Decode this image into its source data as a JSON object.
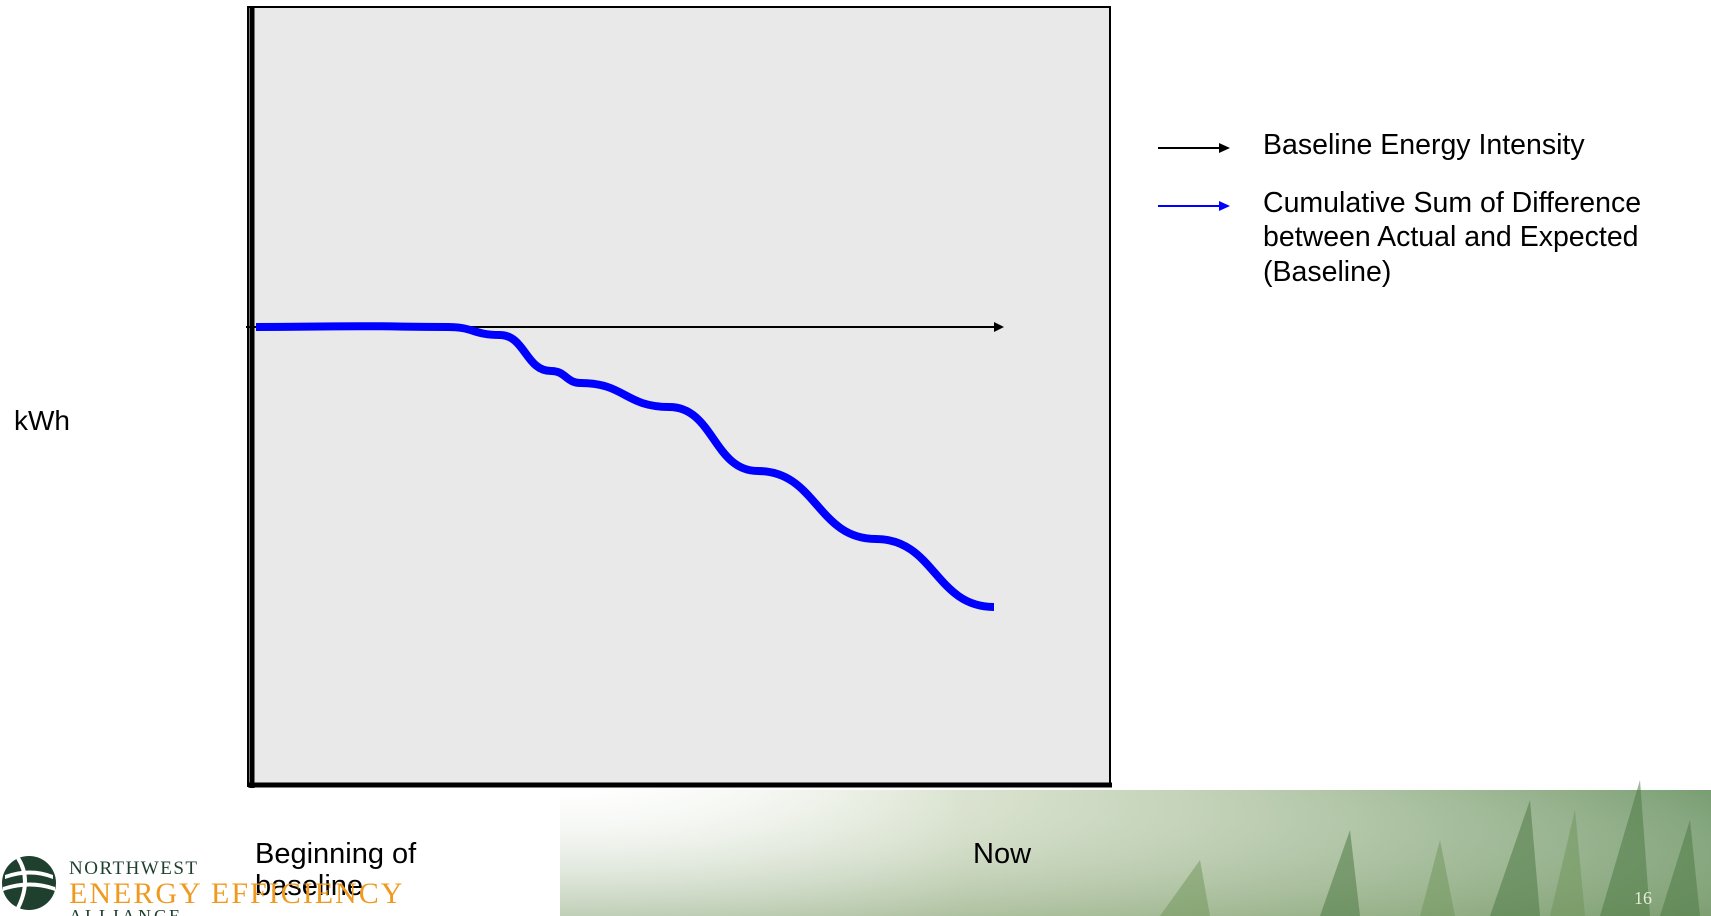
{
  "chart_data": {
    "type": "line",
    "title": "",
    "ylabel": "kWh",
    "xlabel": "",
    "x_ticks": [
      "Beginning of baseline",
      "Now"
    ],
    "xlim": [
      0,
      1
    ],
    "ylim": [
      -1,
      1
    ],
    "series": [
      {
        "name": "Baseline Energy Intensity",
        "color": "#000000",
        "points": [
          [
            0.0,
            0.0
          ],
          [
            1.0,
            0.0
          ]
        ]
      },
      {
        "name": "Cumulative Sum of Difference between Actual and Expected (Baseline)",
        "color": "#0000ff",
        "points": [
          [
            0.0,
            0.0
          ],
          [
            0.14,
            0.002
          ],
          [
            0.26,
            0.0
          ],
          [
            0.33,
            -0.02
          ],
          [
            0.4,
            -0.11
          ],
          [
            0.44,
            -0.14
          ],
          [
            0.56,
            -0.2
          ],
          [
            0.68,
            -0.36
          ],
          [
            0.84,
            -0.53
          ],
          [
            1.0,
            -0.7
          ]
        ]
      }
    ],
    "legend_position": "right",
    "grid": false
  },
  "plot": {
    "background": "#e9e9e9",
    "border_color": "#000000"
  },
  "labels": {
    "y_axis": "kWh",
    "x_start": "Beginning of baseline",
    "x_end": "Now"
  },
  "legend": {
    "items": [
      {
        "label": "Baseline Energy Intensity",
        "color": "#000000"
      },
      {
        "label": "Cumulative Sum of Difference between Actual and Expected (Baseline)",
        "color": "#0000ff"
      }
    ]
  },
  "logo": {
    "line1": "NORTHWEST",
    "line2": "ENERGY EFFICIENCY",
    "line3": "ALLIANCE",
    "icon": "globe-leaf-icon",
    "colors": {
      "dark": "#1f3f2f",
      "accent": "#f0991f"
    }
  },
  "footer": {
    "page_number": "16"
  }
}
